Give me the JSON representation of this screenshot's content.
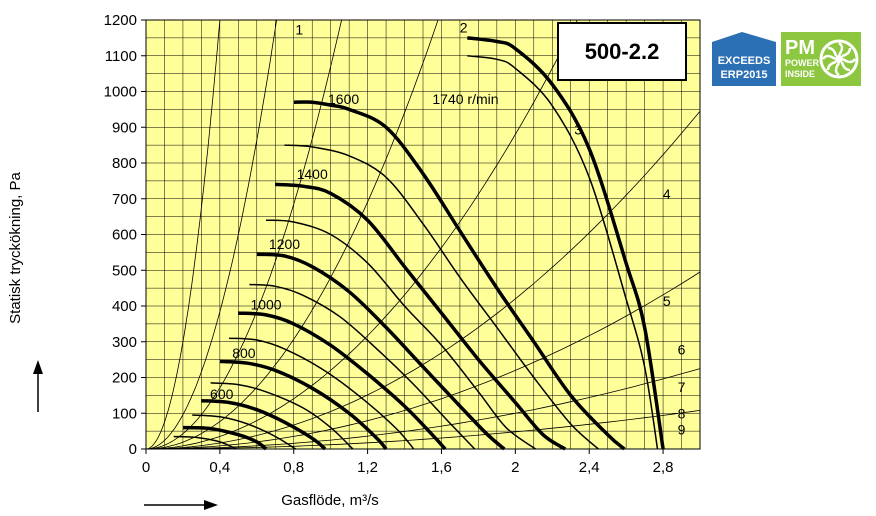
{
  "chart_data": {
    "type": "line",
    "xlabel": "Gasflöde, m³/s",
    "ylabel": "Statisk tryckökning, Pa",
    "xlim": [
      0,
      3.0
    ],
    "ylim": [
      0,
      1200
    ],
    "x_ticks": [
      "0",
      "0,4",
      "0,8",
      "1,2",
      "1,6",
      "2",
      "2,4",
      "2,8"
    ],
    "x_tick_values": [
      0,
      0.4,
      0.8,
      1.2,
      1.6,
      2.0,
      2.4,
      2.8
    ],
    "y_ticks": [
      "0",
      "100",
      "200",
      "300",
      "400",
      "500",
      "600",
      "700",
      "800",
      "900",
      "1000",
      "1100",
      "1200"
    ],
    "y_tick_values": [
      0,
      100,
      200,
      300,
      400,
      500,
      600,
      700,
      800,
      900,
      1000,
      1100,
      1200
    ],
    "grid": true,
    "background": "#ffff99",
    "series": [
      {
        "name": "1740 r/min",
        "bold": true,
        "x": [
          1.74,
          1.9,
          2.0,
          2.2,
          2.4,
          2.6,
          2.7,
          2.8
        ],
        "y": [
          1150,
          1140,
          1120,
          1020,
          840,
          520,
          340,
          0
        ]
      },
      {
        "name": "",
        "bold": false,
        "x": [
          1.74,
          1.9,
          2.0,
          2.2,
          2.4,
          2.6,
          2.7,
          2.77
        ],
        "y": [
          1100,
          1090,
          1065,
          960,
          760,
          420,
          230,
          0
        ]
      },
      {
        "name": "1600",
        "bold": true,
        "x": [
          0.8,
          0.9,
          1.0,
          1.1,
          1.3,
          1.5,
          1.7,
          1.9,
          2.1,
          2.3,
          2.5,
          2.59
        ],
        "y": [
          970,
          970,
          962,
          950,
          900,
          770,
          610,
          450,
          300,
          150,
          40,
          0
        ]
      },
      {
        "name": "",
        "bold": false,
        "x": [
          0.75,
          0.9,
          1.1,
          1.3,
          1.5,
          1.7,
          1.9,
          2.1,
          2.3,
          2.45
        ],
        "y": [
          850,
          845,
          820,
          760,
          630,
          480,
          340,
          200,
          70,
          0
        ]
      },
      {
        "name": "1400",
        "bold": true,
        "x": [
          0.7,
          0.85,
          1.0,
          1.2,
          1.4,
          1.6,
          1.8,
          2.0,
          2.15,
          2.27
        ],
        "y": [
          740,
          735,
          715,
          640,
          510,
          380,
          250,
          130,
          40,
          0
        ]
      },
      {
        "name": "",
        "bold": false,
        "x": [
          0.65,
          0.8,
          1.0,
          1.2,
          1.4,
          1.6,
          1.8,
          1.95,
          2.11
        ],
        "y": [
          640,
          635,
          600,
          520,
          400,
          290,
          160,
          60,
          0
        ]
      },
      {
        "name": "1200",
        "bold": true,
        "x": [
          0.6,
          0.75,
          0.9,
          1.1,
          1.3,
          1.5,
          1.7,
          1.85,
          1.94
        ],
        "y": [
          545,
          540,
          510,
          440,
          340,
          230,
          120,
          40,
          0
        ]
      },
      {
        "name": "",
        "bold": false,
        "x": [
          0.56,
          0.7,
          0.85,
          1.05,
          1.25,
          1.45,
          1.65,
          1.78
        ],
        "y": [
          460,
          455,
          430,
          370,
          280,
          180,
          70,
          0
        ]
      },
      {
        "name": "1000",
        "bold": true,
        "x": [
          0.5,
          0.65,
          0.8,
          1.0,
          1.2,
          1.4,
          1.55,
          1.62
        ],
        "y": [
          380,
          375,
          350,
          290,
          210,
          120,
          40,
          0
        ]
      },
      {
        "name": "",
        "bold": false,
        "x": [
          0.45,
          0.6,
          0.75,
          0.95,
          1.15,
          1.35,
          1.45
        ],
        "y": [
          310,
          305,
          280,
          225,
          150,
          60,
          0
        ]
      },
      {
        "name": "800",
        "bold": true,
        "x": [
          0.4,
          0.55,
          0.7,
          0.9,
          1.1,
          1.25,
          1.3
        ],
        "y": [
          245,
          240,
          220,
          170,
          100,
          30,
          0
        ]
      },
      {
        "name": "",
        "bold": false,
        "x": [
          0.35,
          0.5,
          0.65,
          0.85,
          1.0,
          1.12
        ],
        "y": [
          185,
          180,
          160,
          115,
          60,
          0
        ]
      },
      {
        "name": "600",
        "bold": true,
        "x": [
          0.3,
          0.45,
          0.6,
          0.75,
          0.9,
          0.97
        ],
        "y": [
          135,
          130,
          110,
          75,
          30,
          0
        ]
      },
      {
        "name": "",
        "bold": false,
        "x": [
          0.25,
          0.4,
          0.55,
          0.7,
          0.81
        ],
        "y": [
          95,
          90,
          70,
          35,
          0
        ]
      },
      {
        "name": "",
        "bold": true,
        "x": [
          0.2,
          0.35,
          0.5,
          0.6,
          0.65
        ],
        "y": [
          60,
          57,
          40,
          20,
          0
        ]
      },
      {
        "name": "",
        "bold": false,
        "x": [
          0.15,
          0.28,
          0.4,
          0.49
        ],
        "y": [
          35,
          32,
          20,
          0
        ]
      }
    ],
    "system_curves": [
      {
        "name": "1",
        "k": 7500
      },
      {
        "name": "2",
        "k": 2400
      },
      {
        "name": "3",
        "k": 1070
      },
      {
        "name": "4",
        "k": 480
      },
      {
        "name": "5",
        "k": 220
      },
      {
        "name": "6",
        "k": 105
      },
      {
        "name": "7",
        "k": 55
      },
      {
        "name": "8",
        "k": 25
      },
      {
        "name": "9",
        "k": 12
      }
    ],
    "curve_labels": [
      {
        "text": "1",
        "x": 0.83,
        "y": 1160
      },
      {
        "text": "2",
        "x": 1.72,
        "y": 1165
      },
      {
        "text": "3",
        "x": 2.34,
        "y": 880
      },
      {
        "text": "4",
        "x": 2.82,
        "y": 700
      },
      {
        "text": "5",
        "x": 2.82,
        "y": 400
      },
      {
        "text": "6",
        "x": 2.9,
        "y": 265
      },
      {
        "text": "7",
        "x": 2.9,
        "y": 160
      },
      {
        "text": "8",
        "x": 2.9,
        "y": 85
      },
      {
        "text": "9",
        "x": 2.9,
        "y": 40
      },
      {
        "text": "1740 r/min",
        "x": 1.73,
        "y": 965
      },
      {
        "text": "1600",
        "x": 1.07,
        "y": 965
      },
      {
        "text": "1400",
        "x": 0.9,
        "y": 755
      },
      {
        "text": "1200",
        "x": 0.75,
        "y": 560
      },
      {
        "text": "1000",
        "x": 0.65,
        "y": 390
      },
      {
        "text": "800",
        "x": 0.53,
        "y": 255
      },
      {
        "text": "600",
        "x": 0.41,
        "y": 140
      }
    ]
  },
  "model_label": "500-2.2",
  "badges": {
    "erp": {
      "line1": "EXCEEDS",
      "line2": "ERP2015",
      "color": "#2b6fb4"
    },
    "pm": {
      "line1": "PM",
      "line2": "POWER",
      "line3": "INSIDE",
      "color": "#8dc63f"
    }
  },
  "arrows": {
    "x_arrow": "right-arrow-icon",
    "y_arrow": "up-arrow-icon"
  }
}
